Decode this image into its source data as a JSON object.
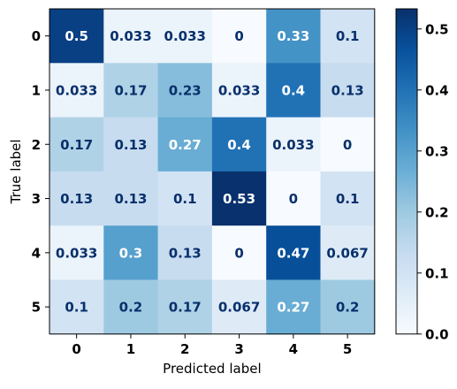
{
  "chart_data": {
    "type": "heatmap",
    "title": "",
    "xlabel": "Predicted label",
    "ylabel": "True label",
    "x_categories": [
      "0",
      "1",
      "2",
      "3",
      "4",
      "5"
    ],
    "y_categories": [
      "0",
      "1",
      "2",
      "3",
      "4",
      "5"
    ],
    "values": [
      [
        0.5,
        0.033,
        0.033,
        0,
        0.33,
        0.1
      ],
      [
        0.033,
        0.17,
        0.23,
        0.033,
        0.4,
        0.13
      ],
      [
        0.17,
        0.13,
        0.27,
        0.4,
        0.033,
        0
      ],
      [
        0.13,
        0.13,
        0.1,
        0.53,
        0,
        0.1
      ],
      [
        0.033,
        0.3,
        0.13,
        0,
        0.47,
        0.067
      ],
      [
        0.1,
        0.2,
        0.17,
        0.067,
        0.27,
        0.2
      ]
    ],
    "value_labels": [
      [
        "0.5",
        "0.033",
        "0.033",
        "0",
        "0.33",
        "0.1"
      ],
      [
        "0.033",
        "0.17",
        "0.23",
        "0.033",
        "0.4",
        "0.13"
      ],
      [
        "0.17",
        "0.13",
        "0.27",
        "0.4",
        "0.033",
        "0"
      ],
      [
        "0.13",
        "0.13",
        "0.1",
        "0.53",
        "0",
        "0.1"
      ],
      [
        "0.033",
        "0.3",
        "0.13",
        "0",
        "0.47",
        "0.067"
      ],
      [
        "0.1",
        "0.2",
        "0.17",
        "0.067",
        "0.27",
        "0.2"
      ]
    ],
    "colormap": "Blues",
    "color_range": [
      0,
      0.533
    ],
    "colorbar_ticks": [
      "0.0",
      "0.1",
      "0.2",
      "0.3",
      "0.4",
      "0.5"
    ],
    "colorbar_tick_values": [
      0,
      0.1,
      0.2,
      0.3,
      0.4,
      0.5
    ],
    "text_colors": {
      "on_dark": "#ffffff",
      "on_light": "#08306b"
    },
    "grid": false,
    "legend": "colorbar-right"
  }
}
